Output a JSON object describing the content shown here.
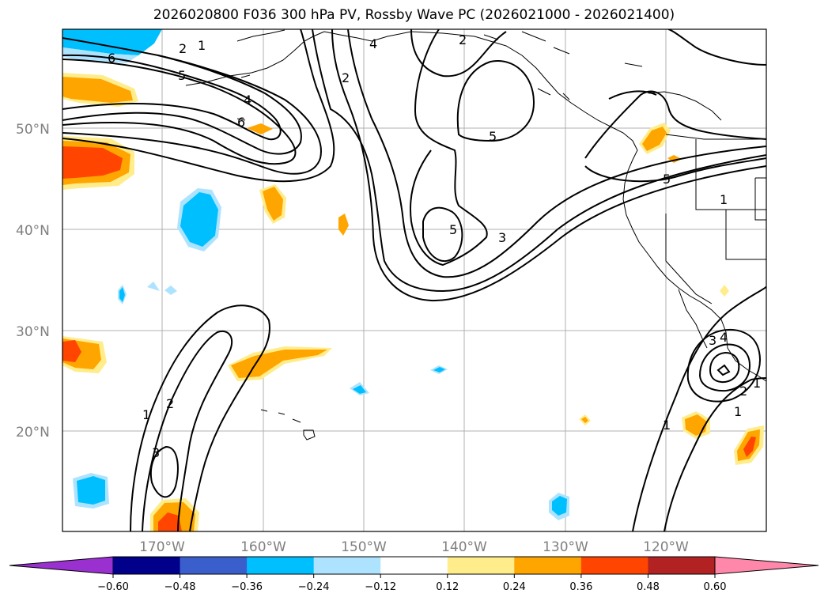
{
  "title": "2026020800 F036 300 hPa PV, Rossby Wave PC (2026021000 - 2026021400)",
  "lat_labels": [
    "50°N",
    "40°N",
    "30°N",
    "20°N"
  ],
  "lon_labels": [
    "170°W",
    "160°W",
    "150°W",
    "140°W",
    "130°W",
    "120°W"
  ],
  "colorbar": {
    "colors": [
      "#9b30d0",
      "#00008b",
      "#3a5fcd",
      "#00bfff",
      "#aee3ff",
      "#ffffff",
      "#ffec8b",
      "#ffa500",
      "#ff4500",
      "#b22222",
      "#ff88aa"
    ],
    "ticks": [
      "−0.60",
      "−0.48",
      "−0.36",
      "−0.24",
      "−0.12",
      "0.12",
      "0.24",
      "0.36",
      "0.48",
      "0.60"
    ]
  },
  "contour_labels": [
    "6",
    "5",
    "4",
    "2",
    "1",
    "6",
    "4",
    "2",
    "5",
    "5",
    "3",
    "1",
    "5",
    "1",
    "2",
    "3",
    "4",
    "1",
    "2",
    "1",
    "3",
    "2",
    "1"
  ]
}
